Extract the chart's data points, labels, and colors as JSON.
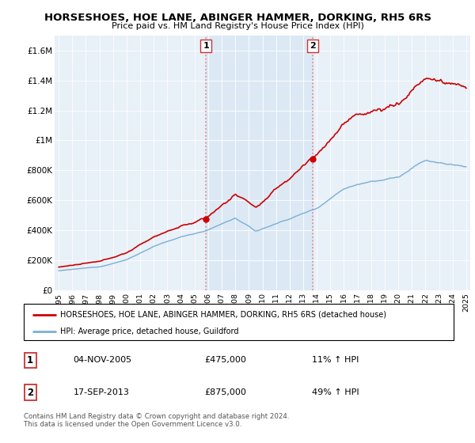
{
  "title": "HORSESHOES, HOE LANE, ABINGER HAMMER, DORKING, RH5 6RS",
  "subtitle": "Price paid vs. HM Land Registry's House Price Index (HPI)",
  "legend_line1": "HORSESHOES, HOE LANE, ABINGER HAMMER, DORKING, RH5 6RS (detached house)",
  "legend_line2": "HPI: Average price, detached house, Guildford",
  "transaction1_date": "04-NOV-2005",
  "transaction1_price": "£475,000",
  "transaction1_hpi": "11% ↑ HPI",
  "transaction2_date": "17-SEP-2013",
  "transaction2_price": "£875,000",
  "transaction2_hpi": "49% ↑ HPI",
  "footnote": "Contains HM Land Registry data © Crown copyright and database right 2024.\nThis data is licensed under the Open Government Licence v3.0.",
  "property_color": "#cc0000",
  "hpi_color": "#7bafd4",
  "vline_color": "#e88080",
  "shade_color": "#dce8f5",
  "background_color": "#e8f0f8",
  "ylim": [
    0,
    1700000
  ],
  "yticks": [
    0,
    200000,
    400000,
    600000,
    800000,
    1000000,
    1200000,
    1400000,
    1600000
  ],
  "ytick_labels": [
    "£0",
    "£200K",
    "£400K",
    "£600K",
    "£800K",
    "£1M",
    "£1.2M",
    "£1.4M",
    "£1.6M"
  ],
  "transaction1_year": 2005.84,
  "transaction2_year": 2013.71,
  "transaction1_value": 475000,
  "transaction2_value": 875000
}
